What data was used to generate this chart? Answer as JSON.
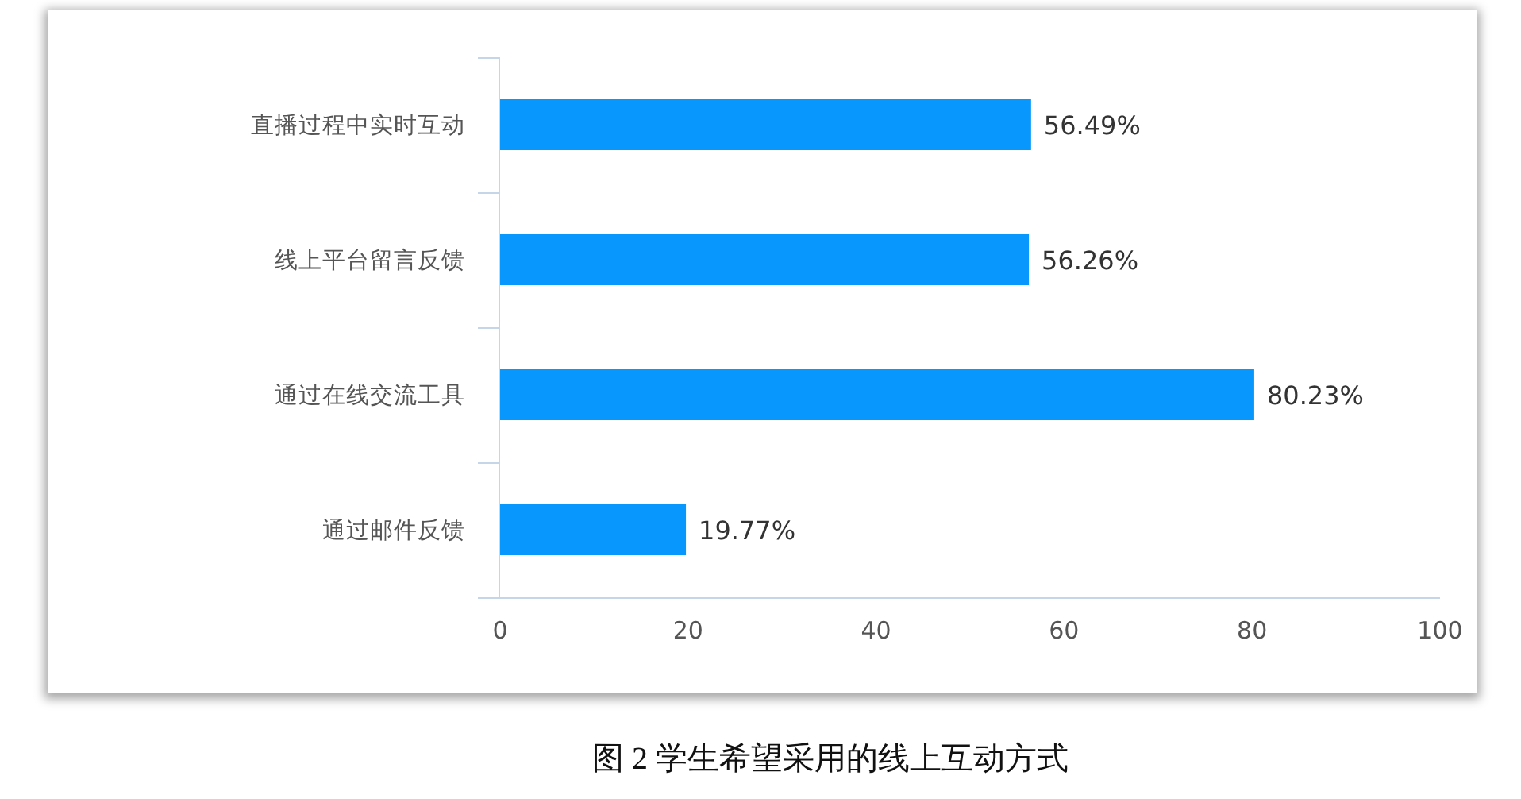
{
  "chart_data": {
    "type": "bar",
    "orientation": "horizontal",
    "title": "图 2 学生希望采用的线上互动方式",
    "categories": [
      "直播过程中实时互动",
      "线上平台留言反馈",
      "通过在线交流工具",
      "通过邮件反馈"
    ],
    "values": [
      56.49,
      56.26,
      80.23,
      19.77
    ],
    "value_labels": [
      "56.49%",
      "56.26%",
      "80.23%",
      "19.77%"
    ],
    "color": "#0797fd",
    "xlim": [
      0,
      100
    ],
    "xticks": [
      0,
      20,
      40,
      60,
      80,
      100
    ]
  }
}
